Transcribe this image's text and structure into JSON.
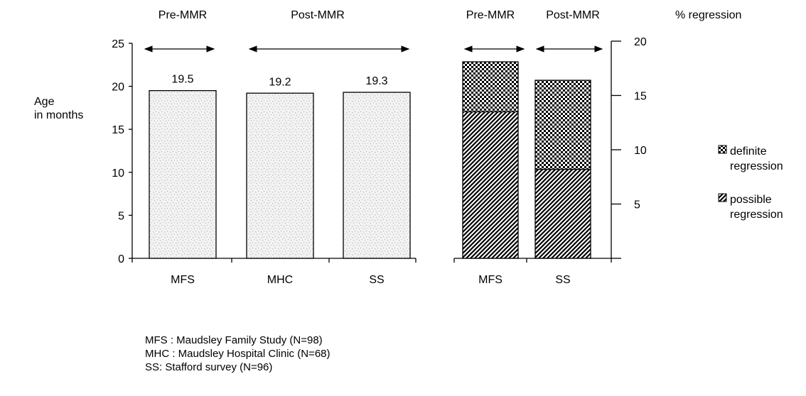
{
  "chart_data": [
    {
      "type": "bar",
      "ylabel": "Age\nin months",
      "ylim": [
        0,
        25
      ],
      "yticks": [
        0,
        5,
        10,
        15,
        20,
        25
      ],
      "categories": [
        "MFS",
        "MHC",
        "SS"
      ],
      "values": [
        19.5,
        19.2,
        19.3
      ],
      "data_labels": [
        "19.5",
        "19.2",
        "19.3"
      ],
      "period_labels": [
        {
          "label": "Pre-MMR",
          "categories": [
            "MFS"
          ]
        },
        {
          "label": "Post-MMR",
          "categories": [
            "MHC",
            "SS"
          ]
        }
      ],
      "grid": false
    },
    {
      "type": "bar",
      "stacked": true,
      "ylabel": "% regression",
      "ylim": [
        0,
        20
      ],
      "yticks": [
        5,
        10,
        15,
        20
      ],
      "axis_side": "right",
      "categories": [
        "MFS",
        "SS"
      ],
      "series": [
        {
          "name": "possible\nregression",
          "values": [
            13.5,
            8.2
          ],
          "pattern": "diagonal-hatch"
        },
        {
          "name": "definite\nregression",
          "values": [
            4.6,
            8.2
          ],
          "pattern": "checkerboard"
        }
      ],
      "period_labels": [
        {
          "label": "Pre-MMR",
          "categories": [
            "MFS"
          ]
        },
        {
          "label": "Post-MMR",
          "categories": [
            "SS"
          ]
        }
      ],
      "legend": [
        "definite\nregression",
        "possible\nregression"
      ],
      "legend_position": "right",
      "grid": false
    }
  ],
  "footnotes": [
    "MFS : Maudsley Family Study  (N=98)",
    "MHC : Maudsley Hospital Clinic  (N=68)",
    "SS: Stafford survey  (N=96)"
  ]
}
